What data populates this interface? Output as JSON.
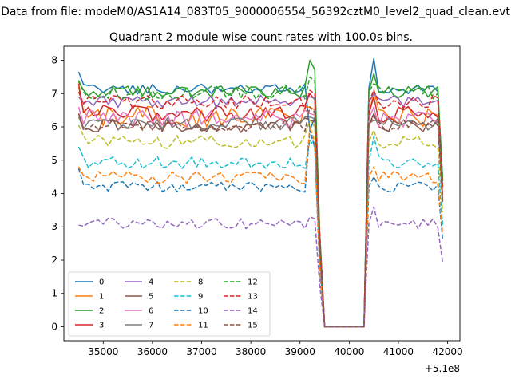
{
  "suptitle": "Data from file: modeM0/AS1A14_083T05_9000006554_56392cztM0_level2_quad_clean.evt",
  "chart_data": {
    "type": "line",
    "title": "Quadrant 2 module wise count rates with 100.0s bins.",
    "xlabel": "",
    "ylabel": "",
    "x_offset_label": "+5.1e8",
    "xlim": [
      34200,
      42250
    ],
    "ylim": [
      -0.42,
      8.42
    ],
    "xticks": [
      35000,
      36000,
      37000,
      38000,
      39000,
      40000,
      41000,
      42000
    ],
    "xtick_labels": [
      "35000",
      "36000",
      "37000",
      "38000",
      "39000",
      "40000",
      "41000",
      "42000"
    ],
    "yticks": [
      0,
      1,
      2,
      3,
      4,
      5,
      6,
      7,
      8
    ],
    "ytick_labels": [
      "0",
      "1",
      "2",
      "3",
      "4",
      "5",
      "6",
      "7",
      "8"
    ],
    "legend": "lower-left",
    "segments": [
      {
        "x_start": 34500,
        "x_end": 39300,
        "step": 100
      },
      {
        "x_start": 40400,
        "x_end": 41900,
        "step": 100
      }
    ],
    "gap": {
      "x_start": 39400,
      "x_end": 40300,
      "zero_from": 39500,
      "zero_to": 40300,
      "edge_fraction": 0.4
    },
    "series": [
      {
        "name": "0",
        "color": "#1f77b4",
        "dash": "solid",
        "level": 7.15,
        "noise": 0.16,
        "first": 7.65,
        "gap_edge": 5.9,
        "peak": 8.05
      },
      {
        "name": "1",
        "color": "#ff7f0e",
        "dash": "solid",
        "level": 6.3,
        "noise": 0.32,
        "first": 7.2,
        "gap_edge": 6.6,
        "peak": 7.1
      },
      {
        "name": "2",
        "color": "#2ca02c",
        "dash": "solid",
        "level": 7.05,
        "noise": 0.18,
        "first": 7.35,
        "gap_edge": 8.0,
        "peak": 7.6
      },
      {
        "name": "3",
        "color": "#d62728",
        "dash": "solid",
        "level": 6.4,
        "noise": 0.26,
        "first": 7.3,
        "gap_edge": 7.0,
        "peak": 6.9
      },
      {
        "name": "4",
        "color": "#9467bd",
        "dash": "solid",
        "level": 6.75,
        "noise": 0.2,
        "first": 6.9,
        "gap_edge": 6.9,
        "peak": 7.0
      },
      {
        "name": "5",
        "color": "#8c564b",
        "dash": "solid",
        "level": 6.05,
        "noise": 0.22,
        "first": 6.4,
        "gap_edge": 6.2,
        "peak": 6.4
      },
      {
        "name": "6",
        "color": "#e377c2",
        "dash": "solid",
        "level": 6.25,
        "noise": 0.26,
        "first": 6.6,
        "gap_edge": 6.4,
        "peak": 6.6
      },
      {
        "name": "7",
        "color": "#7f7f7f",
        "dash": "solid",
        "level": 6.1,
        "noise": 0.2,
        "first": 6.3,
        "gap_edge": 6.3,
        "peak": 6.2
      },
      {
        "name": "8",
        "color": "#bcbd22",
        "dash": "dashed",
        "level": 5.55,
        "noise": 0.2,
        "first": 6.05,
        "gap_edge": 6.2,
        "peak": 5.9
      },
      {
        "name": "9",
        "color": "#17becf",
        "dash": "dashed",
        "level": 4.95,
        "noise": 0.2,
        "first": 5.4,
        "gap_edge": 5.6,
        "peak": 5.7
      },
      {
        "name": "10",
        "color": "#1f77b4",
        "dash": "dashed",
        "level": 4.2,
        "noise": 0.16,
        "first": 4.75,
        "gap_edge": 5.9,
        "peak": 4.5
      },
      {
        "name": "11",
        "color": "#ff7f0e",
        "dash": "dashed",
        "level": 4.5,
        "noise": 0.2,
        "first": 4.8,
        "gap_edge": 6.0,
        "peak": 4.8
      },
      {
        "name": "12",
        "color": "#2ca02c",
        "dash": "dashed",
        "level": 7.05,
        "noise": 0.22,
        "first": 7.4,
        "gap_edge": 7.5,
        "peak": 7.3
      },
      {
        "name": "13",
        "color": "#d62728",
        "dash": "dashed",
        "level": 6.75,
        "noise": 0.22,
        "first": 7.05,
        "gap_edge": 7.1,
        "peak": 7.1
      },
      {
        "name": "14",
        "color": "#9467bd",
        "dash": "dashed",
        "level": 3.1,
        "noise": 0.16,
        "first": 3.05,
        "gap_edge": 3.3,
        "peak": 3.6
      },
      {
        "name": "15",
        "color": "#8c564b",
        "dash": "dashed",
        "level": 6.05,
        "noise": 0.2,
        "first": 6.4,
        "gap_edge": 6.6,
        "peak": 6.3
      }
    ]
  }
}
